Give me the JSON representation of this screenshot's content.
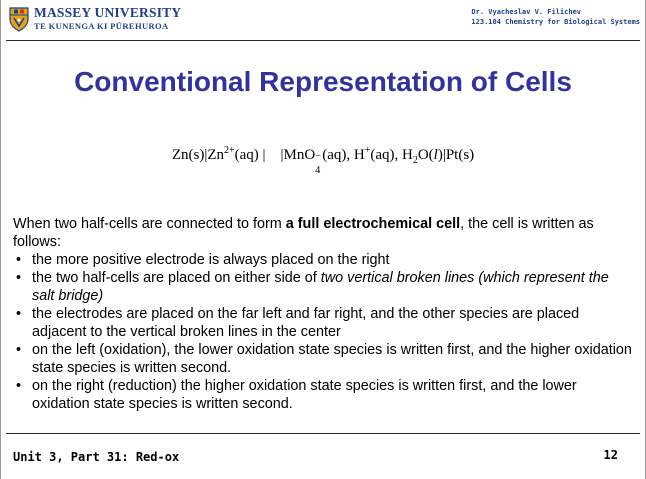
{
  "header": {
    "university": "MASSEY UNIVERSITY",
    "university_sub": "TE KUNENGA KI PŪREHUROA",
    "author": "Dr. Vyacheslav V. Filichev",
    "course": "123.104 Chemistry for Biological Systems"
  },
  "slide": {
    "title": "Conventional Representation of Cells",
    "equation": {
      "anode": "Zn(s)|Zn",
      "anode_charge": "2+",
      "anode_end": "(aq) |",
      "cathode_start": "|MnO",
      "mno4_sub": "4",
      "mno4_sup": "−",
      "cathode_mid": "(aq), H",
      "h_sup": "+",
      "cathode_water": "(aq), H",
      "water_sub": "2",
      "cathode_o": "O(",
      "cathode_l": "l",
      "cathode_end": ")|Pt(s)"
    },
    "intro": {
      "before_bold": "When two half-cells are connected to form ",
      "bold": "a full electrochemical cell",
      "after_bold": ", the cell is written as follows:"
    },
    "bullets": [
      {
        "text": "the more positive electrode is always placed on the right"
      },
      {
        "text": "the two half-cells are placed on either side of ",
        "italic": "two vertical broken lines (which represent the salt bridge)"
      },
      {
        "text": "the electrodes are placed on the far left and far right, and the other species are placed adjacent to the vertical broken lines in the center"
      },
      {
        "text": "on the left (oxidation), the lower oxidation state species is written first, and the higher oxidation state species is written second."
      },
      {
        "text": "on the right (reduction) the higher oxidation state species is written first, and the lower oxidation state species is written second."
      }
    ]
  },
  "footer": {
    "unit": "Unit 3, Part 31: Red-ox",
    "page": "12"
  },
  "colors": {
    "title": "#33339a",
    "brand": "#1f3f86"
  }
}
